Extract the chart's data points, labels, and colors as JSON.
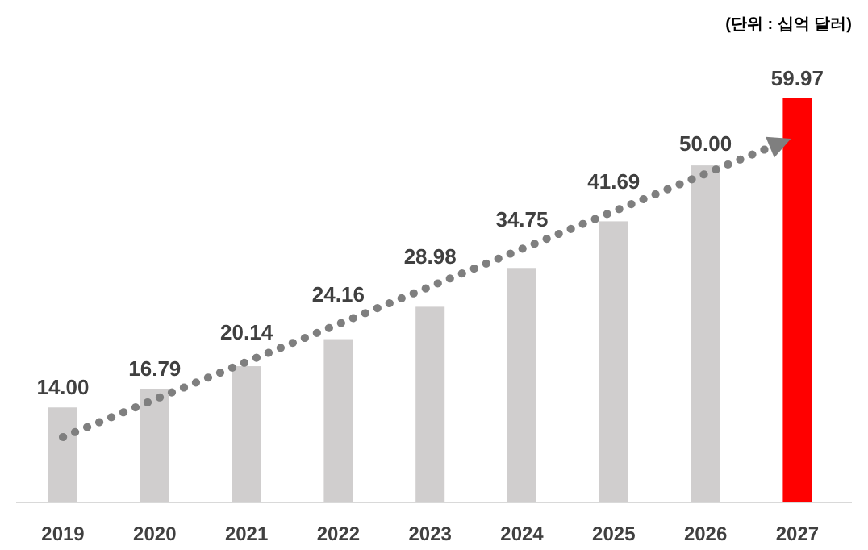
{
  "chart_data": {
    "type": "bar",
    "annotations": [
      "(단위 : 십억 달러)"
    ],
    "categories": [
      "2019",
      "2020",
      "2021",
      "2022",
      "2023",
      "2024",
      "2025",
      "2026",
      "2027"
    ],
    "series": [
      {
        "values": [
          14.0,
          16.79,
          20.14,
          24.16,
          28.98,
          34.75,
          41.69,
          50.0,
          59.97
        ],
        "colors": [
          "#d0cece",
          "#d0cece",
          "#d0cece",
          "#d0cece",
          "#d0cece",
          "#d0cece",
          "#d0cece",
          "#d0cece",
          "#ff0000"
        ],
        "value_labels": [
          "14.00",
          "16.79",
          "20.14",
          "24.16",
          "28.98",
          "34.75",
          "41.69",
          "50.00",
          "59.97"
        ]
      }
    ]
  }
}
